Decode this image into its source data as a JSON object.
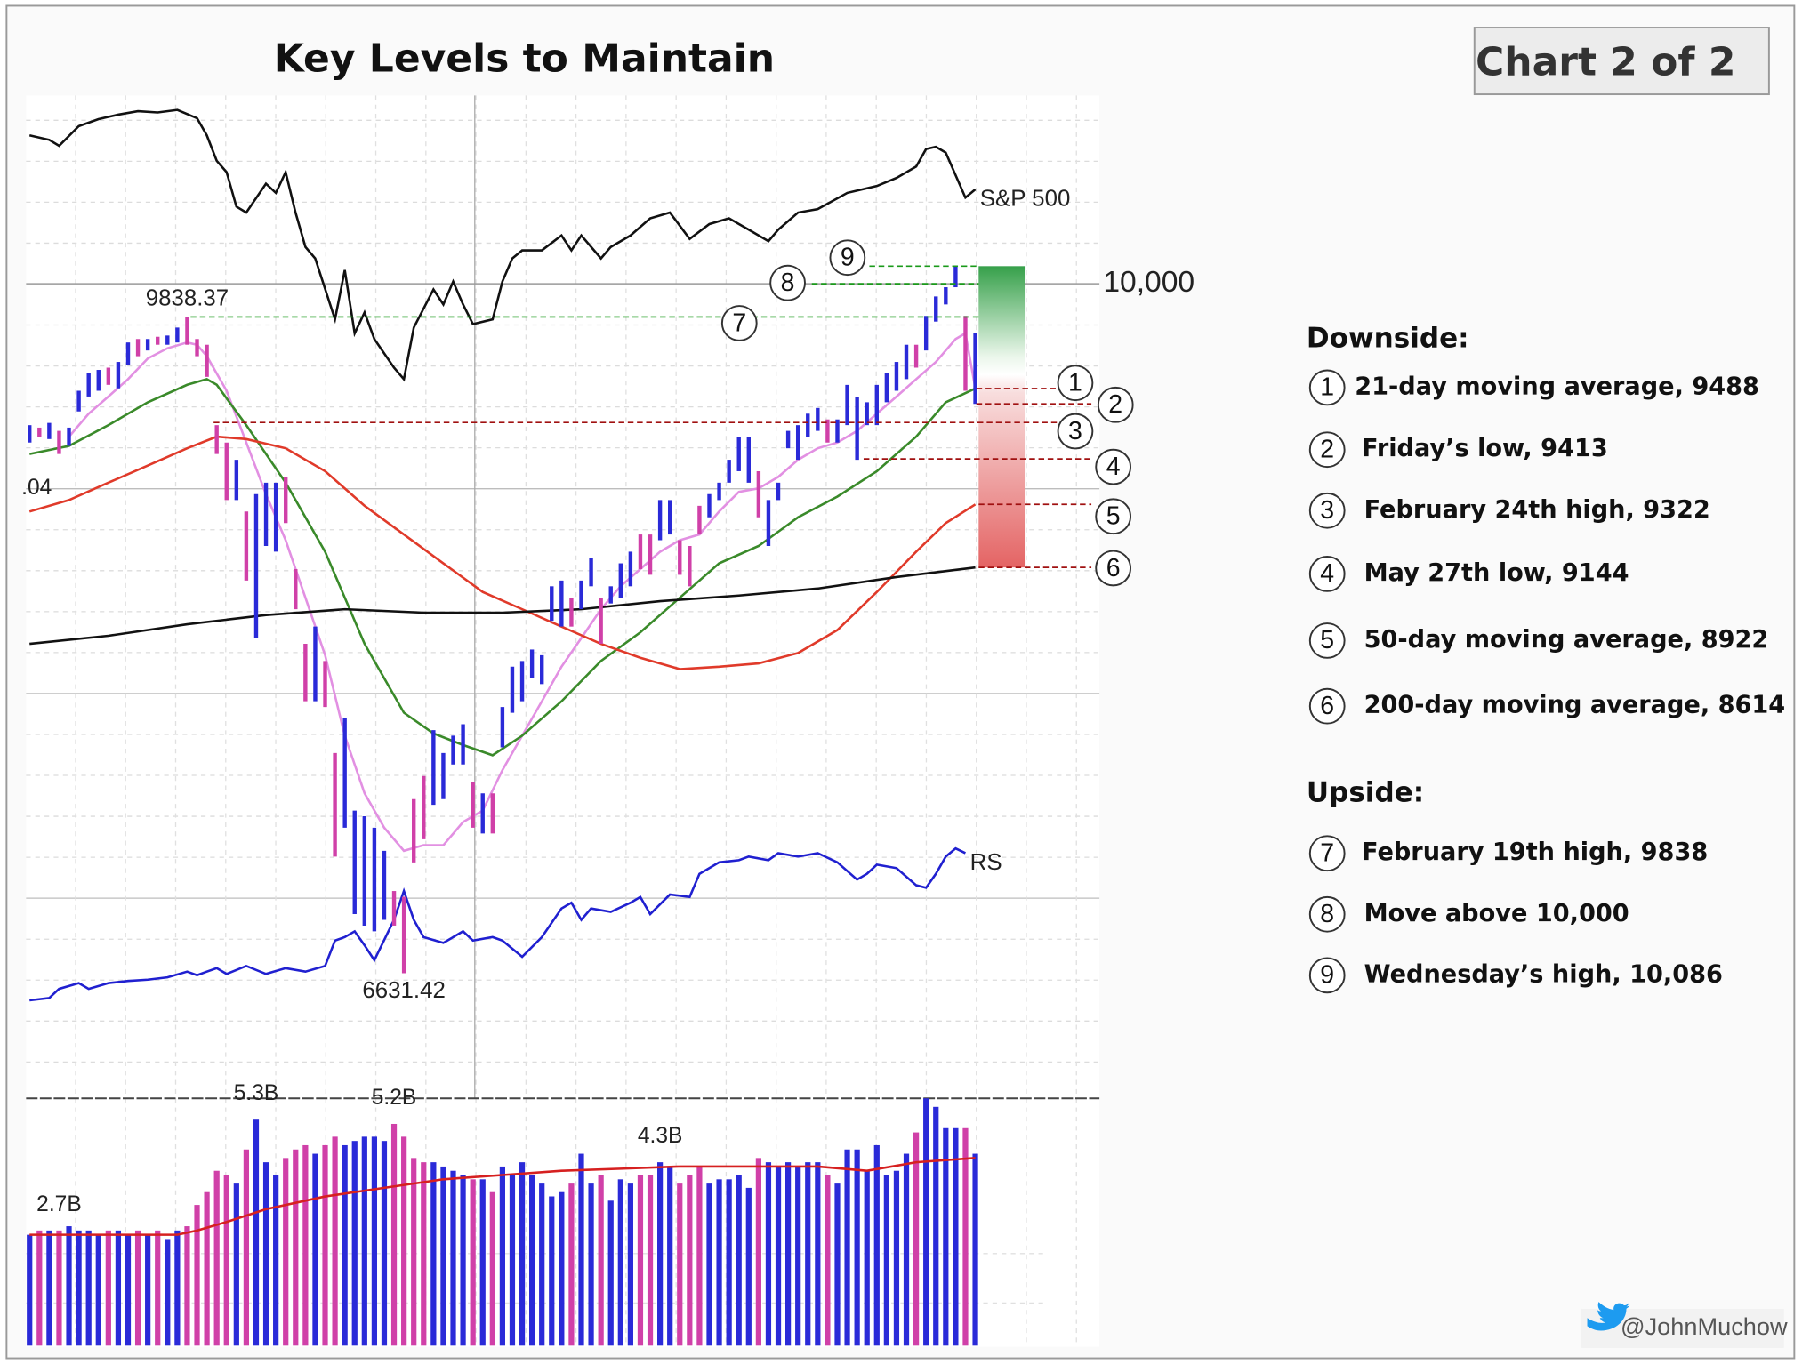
{
  "chart_data": {
    "type": "stock",
    "title": "Key Levels to Maintain",
    "badge": "Chart 2 of 2",
    "xlim": [
      -0.35,
      108.6
    ],
    "ylim": [
      6020,
      10920
    ],
    "yticks": [
      {
        "value": 10000,
        "label": "10,000"
      }
    ],
    "axis_fragment": ".04",
    "bars": {
      "up_color": "#2a2ad8",
      "down_color": "#d040a8",
      "down": [
        1,
        3,
        8,
        11,
        13,
        16,
        17,
        18,
        19,
        20,
        22,
        26,
        27,
        28,
        30,
        31,
        37,
        38,
        39,
        40,
        45,
        47,
        55,
        58,
        62,
        63,
        66,
        67,
        68,
        74,
        81,
        90,
        95
      ],
      "high": [
        9309,
        9297,
        9320,
        9281,
        9297,
        9477,
        9562,
        9579,
        9590,
        9618,
        9713,
        9730,
        9730,
        9741,
        9747,
        9786,
        9838.37,
        9730,
        9702,
        9309,
        9224,
        9140,
        8887,
        8972,
        9028,
        9028,
        9056,
        8606,
        8241,
        8325,
        8157,
        7707,
        7876,
        7426,
        7398,
        7342,
        7229,
        7033,
        7005,
        7482,
        7595,
        7819,
        7707,
        7792,
        7848,
        7567,
        7510,
        7510,
        7932,
        8129,
        8157,
        8213,
        8185,
        8522,
        8550,
        8466,
        8550,
        8662,
        8466,
        8522,
        8634,
        8691,
        8775,
        8775,
        8943,
        8943,
        8747,
        8719,
        8915,
        8972,
        9028,
        9140,
        9253,
        9253,
        9084,
        8943,
        9028,
        9281,
        9309,
        9365,
        9393,
        9337,
        9337,
        9506,
        9449,
        9421,
        9506,
        9562,
        9618,
        9702,
        9702,
        9843,
        9938,
        9983,
        10086,
        9843,
        9758
      ],
      "low": [
        9224,
        9253,
        9241,
        9168,
        9208,
        9376,
        9449,
        9477,
        9506,
        9489,
        9601,
        9646,
        9674,
        9702,
        9702,
        9713,
        9702,
        9646,
        9545,
        9168,
        8943,
        8943,
        8550,
        8269,
        8719,
        8691,
        8831,
        8410,
        7960,
        7960,
        7932,
        7201,
        7342,
        6920,
        6864,
        6836,
        6892,
        6864,
        6631.42,
        7173,
        7286,
        7454,
        7482,
        7651,
        7651,
        7342,
        7314,
        7314,
        7735,
        7904,
        7960,
        8072,
        8044,
        8353,
        8325,
        8325,
        8410,
        8522,
        8241,
        8438,
        8466,
        8522,
        8606,
        8578,
        8747,
        8775,
        8578,
        8522,
        8775,
        8859,
        8943,
        9028,
        9084,
        9028,
        8859,
        8719,
        8943,
        9196,
        9140,
        9253,
        9281,
        9224,
        9224,
        9309,
        9140,
        9309,
        9309,
        9421,
        9477,
        9534,
        9590,
        9674,
        9815,
        9899,
        9983,
        9477,
        9413
      ]
    },
    "series": [
      {
        "name": "S&P 500",
        "color": "#111111",
        "x": [
          0,
          2,
          3,
          5,
          7,
          9,
          11,
          13,
          15,
          17,
          18,
          19,
          20,
          21,
          22,
          24,
          25,
          26,
          27,
          28,
          29,
          31,
          32,
          33,
          34,
          35,
          37,
          38,
          39,
          41,
          42,
          43,
          44,
          45,
          47,
          48,
          49,
          50,
          52,
          54,
          55,
          56,
          58,
          59,
          61,
          63,
          65,
          67,
          69,
          71,
          73,
          75,
          76,
          78,
          80,
          83,
          86,
          88,
          90,
          91,
          92,
          93,
          95,
          96
        ],
        "values": [
          10725,
          10703,
          10674,
          10770,
          10804,
          10826,
          10843,
          10837,
          10849,
          10809,
          10725,
          10601,
          10545,
          10377,
          10348,
          10489,
          10444,
          10545,
          10348,
          10180,
          10124,
          9826,
          10067,
          9758,
          9860,
          9730,
          9590,
          9534,
          9786,
          9972,
          9899,
          10011,
          9899,
          9803,
          9826,
          10011,
          10124,
          10163,
          10163,
          10236,
          10163,
          10236,
          10124,
          10180,
          10236,
          10320,
          10348,
          10219,
          10292,
          10320,
          10264,
          10208,
          10264,
          10348,
          10365,
          10444,
          10478,
          10517,
          10573,
          10658,
          10669,
          10641,
          10421,
          10461
        ]
      },
      {
        "name": "RS",
        "color": "#2020d0",
        "x": [
          0,
          2,
          3,
          5,
          6,
          8,
          10,
          12,
          14,
          16,
          17,
          18,
          19,
          20,
          22,
          24,
          26,
          28,
          30,
          31,
          32,
          33,
          34,
          35,
          37,
          38,
          39,
          40,
          42,
          44,
          45,
          47,
          48,
          50,
          52,
          54,
          55,
          56,
          57,
          59,
          61,
          62,
          63,
          65,
          67,
          68,
          70,
          72,
          73,
          75,
          76,
          78,
          80,
          82,
          84,
          85,
          86,
          88,
          90,
          91,
          92,
          93,
          94,
          95
        ],
        "values": [
          6499,
          6510,
          6555,
          6583,
          6555,
          6583,
          6594,
          6600,
          6611,
          6639,
          6622,
          6639,
          6656,
          6628,
          6667,
          6628,
          6656,
          6639,
          6667,
          6791,
          6808,
          6836,
          6768,
          6695,
          6892,
          7033,
          6892,
          6808,
          6780,
          6836,
          6791,
          6808,
          6791,
          6712,
          6808,
          6948,
          6976,
          6892,
          6948,
          6931,
          6976,
          7004,
          6920,
          7016,
          7004,
          7117,
          7173,
          7184,
          7201,
          7184,
          7218,
          7201,
          7218,
          7173,
          7089,
          7117,
          7162,
          7145,
          7061,
          7049,
          7117,
          7201,
          7241,
          7218
        ]
      }
    ],
    "overlays": [
      {
        "color": "#e290e2",
        "x": [
          4,
          6,
          8,
          10,
          12,
          14,
          16,
          17,
          18,
          20,
          22,
          24,
          26,
          28,
          30,
          32,
          34,
          36,
          38,
          40,
          42,
          44,
          46,
          48,
          50,
          52,
          54,
          56,
          58,
          60,
          62,
          64,
          66,
          68,
          70,
          72,
          74,
          76,
          78,
          80,
          82,
          84,
          86,
          88,
          90,
          92,
          94,
          95,
          96
        ],
        "values": [
          9253,
          9365,
          9449,
          9534,
          9635,
          9685,
          9713,
          9702,
          9646,
          9477,
          9224,
          8972,
          8747,
          8466,
          8185,
          7792,
          7510,
          7342,
          7229,
          7257,
          7257,
          7370,
          7426,
          7623,
          7792,
          7960,
          8129,
          8269,
          8410,
          8522,
          8606,
          8691,
          8747,
          8775,
          8887,
          8983,
          9000,
          9056,
          9140,
          9196,
          9224,
          9281,
          9365,
          9449,
          9534,
          9618,
          9730,
          9758,
          9489
        ]
      },
      {
        "color": "#3a8a2a",
        "x": [
          0,
          4,
          8,
          12,
          16,
          18,
          19,
          22,
          26,
          30,
          34,
          38,
          41,
          44,
          47,
          50,
          54,
          58,
          62,
          66,
          70,
          74,
          78,
          82,
          86,
          90,
          93,
          96
        ],
        "values": [
          9168,
          9208,
          9309,
          9421,
          9506,
          9534,
          9506,
          9309,
          9028,
          8691,
          8241,
          7904,
          7803,
          7746,
          7696,
          7792,
          7960,
          8157,
          8297,
          8466,
          8634,
          8719,
          8859,
          8960,
          9084,
          9253,
          9421,
          9488
        ]
      },
      {
        "color": "#e03a2a",
        "x": [
          0,
          4,
          8,
          12,
          16,
          19,
          22,
          26,
          30,
          34,
          38,
          42,
          46,
          50,
          54,
          58,
          62,
          66,
          70,
          74,
          78,
          82,
          86,
          90,
          93,
          96
        ],
        "values": [
          8887,
          8943,
          9028,
          9112,
          9196,
          9253,
          9241,
          9196,
          9084,
          8915,
          8775,
          8634,
          8494,
          8410,
          8325,
          8241,
          8173,
          8117,
          8129,
          8145,
          8196,
          8308,
          8494,
          8691,
          8831,
          8922
        ]
      },
      {
        "color": "#111111",
        "x": [
          0,
          8,
          16,
          24,
          32,
          40,
          48,
          56,
          64,
          72,
          80,
          88,
          96
        ],
        "values": [
          8241,
          8280,
          8336,
          8381,
          8410,
          8393,
          8393,
          8410,
          8449,
          8477,
          8511,
          8567,
          8614
        ]
      }
    ],
    "annotations": [
      {
        "text": "9838.37",
        "x": 16,
        "value": 9838.37,
        "position": "above"
      },
      {
        "text": "6631.42",
        "x": 38,
        "value": 6631.42,
        "position": "below"
      }
    ],
    "volume": {
      "ylim": [
        0,
        5.8
      ],
      "values": [
        2.6,
        2.7,
        2.7,
        2.7,
        2.8,
        2.7,
        2.7,
        2.6,
        2.7,
        2.7,
        2.6,
        2.7,
        2.6,
        2.7,
        2.5,
        2.7,
        2.8,
        3.3,
        3.6,
        4.1,
        4.0,
        3.8,
        4.6,
        5.3,
        4.3,
        4.0,
        4.4,
        4.6,
        4.7,
        4.5,
        4.7,
        4.9,
        4.7,
        4.8,
        4.9,
        4.9,
        4.8,
        5.2,
        4.9,
        4.4,
        4.3,
        4.3,
        4.2,
        4.1,
        4.0,
        3.9,
        3.9,
        3.6,
        4.2,
        4.0,
        4.3,
        4.0,
        3.8,
        3.5,
        3.6,
        3.8,
        4.5,
        3.8,
        4.0,
        3.4,
        3.9,
        3.8,
        4.0,
        4.0,
        4.3,
        4.2,
        3.8,
        4.0,
        4.2,
        3.8,
        3.9,
        3.9,
        4.0,
        3.7,
        4.4,
        4.3,
        4.2,
        4.3,
        4.2,
        4.3,
        4.3,
        4.0,
        3.8,
        4.6,
        4.6,
        4.1,
        4.7,
        4.0,
        4.1,
        4.5,
        5.0,
        5.8,
        5.6,
        5.1,
        5.1,
        5.1,
        4.5
      ],
      "value_labels": [
        null,
        null,
        null,
        "2.7B",
        null,
        null,
        null,
        null,
        null,
        null,
        null,
        null,
        null,
        null,
        null,
        null,
        null,
        null,
        null,
        null,
        null,
        null,
        null,
        "5.3B",
        null,
        null,
        null,
        null,
        null,
        null,
        null,
        null,
        null,
        null,
        null,
        null,
        null,
        "5.2B",
        null,
        null,
        null,
        null,
        null,
        null,
        null,
        null,
        null,
        null,
        null,
        null,
        null,
        null,
        null,
        null,
        null,
        null,
        null,
        null,
        null,
        null,
        null,
        null,
        null,
        null,
        "4.3B",
        null,
        null,
        null,
        null,
        null,
        null,
        null,
        null,
        null,
        null,
        null,
        null,
        null,
        null,
        null,
        null,
        null,
        null,
        null,
        null,
        null,
        null,
        null,
        null,
        null,
        null,
        null,
        null,
        null,
        null,
        null,
        null
      ],
      "ma": {
        "color": "#d62020",
        "x": [
          0,
          15,
          17,
          20,
          24,
          30,
          36,
          42,
          48,
          54,
          60,
          66,
          72,
          80,
          85,
          90,
          96
        ],
        "values": [
          2.6,
          2.6,
          2.7,
          2.9,
          3.2,
          3.5,
          3.7,
          3.9,
          4.0,
          4.1,
          4.15,
          4.2,
          4.2,
          4.2,
          4.1,
          4.3,
          4.4
        ]
      }
    },
    "downside": {
      "title": "Downside:",
      "color": "#a01010",
      "items": [
        {
          "number": 1,
          "text": "21-day moving average, 9488",
          "value": 9488
        },
        {
          "number": 2,
          "text": "Friday’s low, 9413",
          "value": 9413
        },
        {
          "number": 3,
          "text": "February 24th high, 9322",
          "value": 9322
        },
        {
          "number": 4,
          "text": "May 27th low, 9144",
          "value": 9144
        },
        {
          "number": 5,
          "text": "50-day moving average, 8922",
          "value": 8922
        },
        {
          "number": 6,
          "text": "200-day moving average, 8614",
          "value": 8614
        }
      ]
    },
    "upside": {
      "title": "Upside:",
      "color": "#1a9a1a",
      "items": [
        {
          "number": 7,
          "text": "February 19th high, 9838",
          "value": 9838
        },
        {
          "number": 8,
          "text": "Move above 10,000",
          "value": 10000
        },
        {
          "number": 9,
          "text": "Wednesday’s high, 10,086",
          "value": 10086
        }
      ]
    },
    "footer": "@JohnMuchow"
  }
}
